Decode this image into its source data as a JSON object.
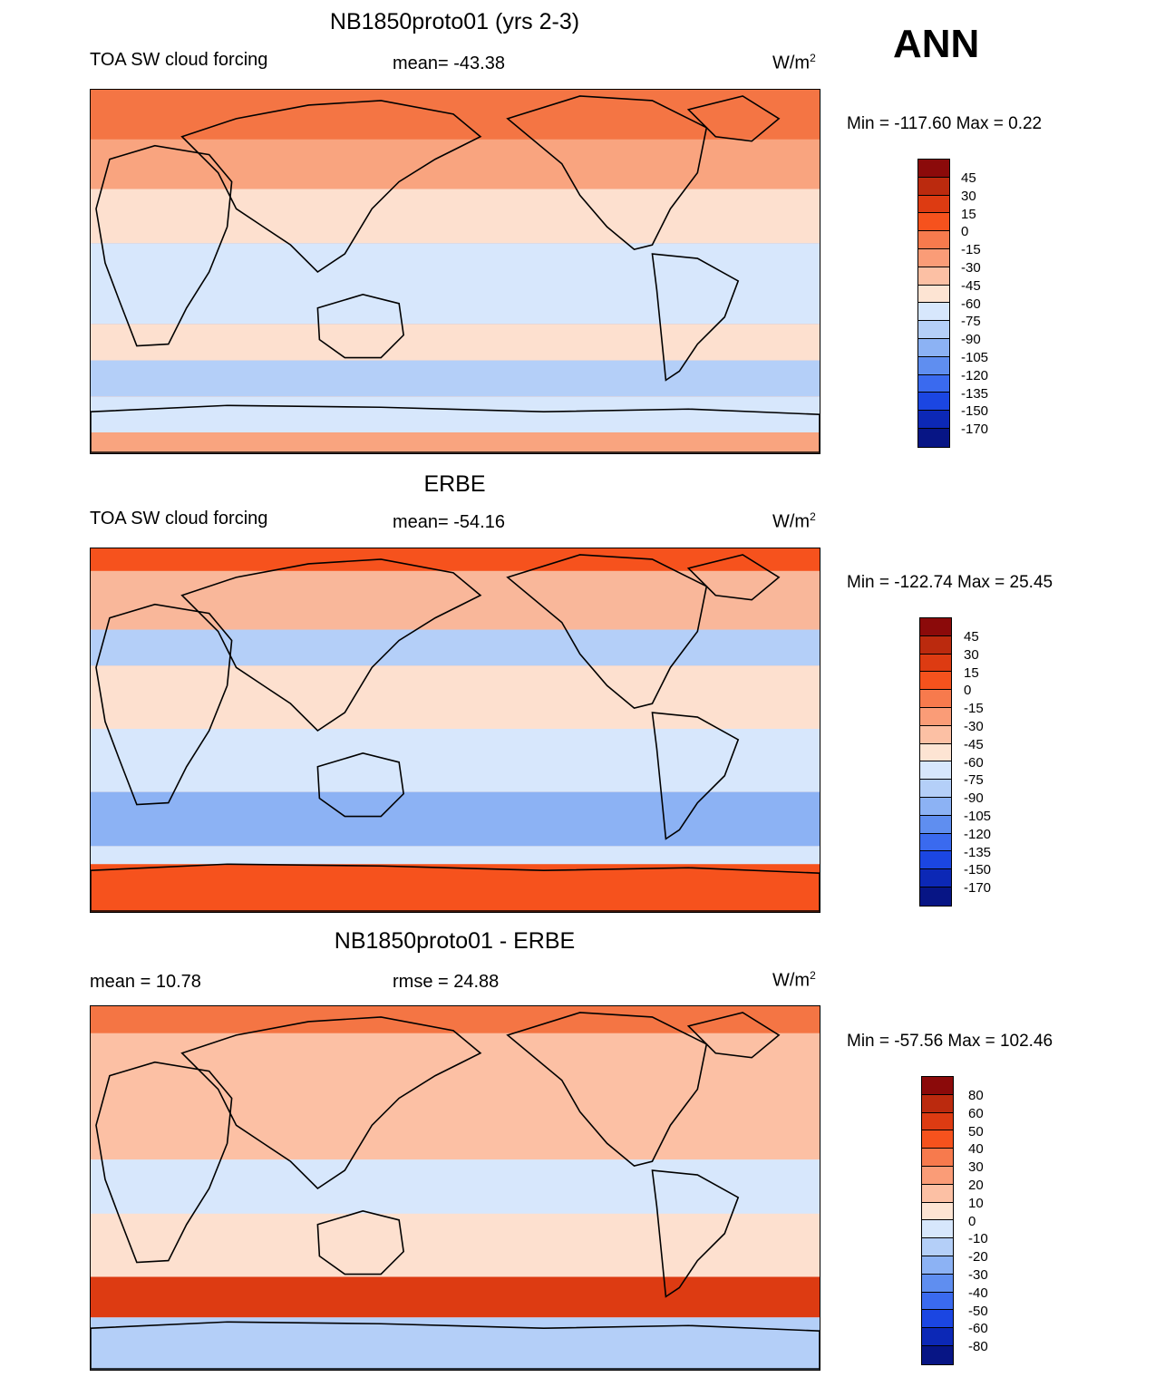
{
  "season": "ANN",
  "panels": [
    {
      "title": "NB1850proto01 (yrs 2-3)",
      "left_label": "TOA SW cloud forcing",
      "center_label": "mean= -43.38",
      "units": "W/m",
      "units_sup": "2",
      "minmax": "Min = -117.60 Max =   0.22",
      "palette": "abs",
      "background_color": "#f47544"
    },
    {
      "title": "ERBE",
      "left_label": "TOA SW cloud forcing",
      "center_label": "mean= -54.16",
      "units": "W/m",
      "units_sup": "2",
      "minmax": "Min = -122.74 Max =  25.45",
      "palette": "abs",
      "background_color": "#f9b79a"
    },
    {
      "title": "NB1850proto01 - ERBE",
      "left_label": "mean =  10.78",
      "center_label": "rmse =  24.88",
      "units": "W/m",
      "units_sup": "2",
      "minmax": "Min = -57.56 Max = 102.46",
      "palette": "diff",
      "background_color": "#fde0cf"
    }
  ],
  "colorbars": {
    "abs": {
      "ticks": [
        "45",
        "30",
        "15",
        "0",
        "-15",
        "-30",
        "-45",
        "-60",
        "-75",
        "-90",
        "-105",
        "-120",
        "-135",
        "-150",
        "-170"
      ],
      "colors": [
        "#8b0a0a",
        "#bb2a0e",
        "#dd3b12",
        "#f6521d",
        "#f77a4d",
        "#fa9c77",
        "#fcc0a4",
        "#fde4d3",
        "#d7e7fc",
        "#b4cff8",
        "#8cb2f4",
        "#5f8ef0",
        "#3a6aef",
        "#1b46e2",
        "#0c28b6",
        "#071585"
      ]
    },
    "diff": {
      "ticks": [
        "80",
        "60",
        "50",
        "40",
        "30",
        "20",
        "10",
        "0",
        "-10",
        "-20",
        "-30",
        "-40",
        "-50",
        "-60",
        "-80"
      ],
      "colors": [
        "#8b0a0a",
        "#bb2a0e",
        "#dd3b12",
        "#f6521d",
        "#f77a4d",
        "#fa9c77",
        "#fcc0a4",
        "#fde4d3",
        "#d7e7fc",
        "#b4cff8",
        "#8cb2f4",
        "#5f8ef0",
        "#3a6aef",
        "#1b46e2",
        "#0c28b6",
        "#071585"
      ]
    }
  }
}
